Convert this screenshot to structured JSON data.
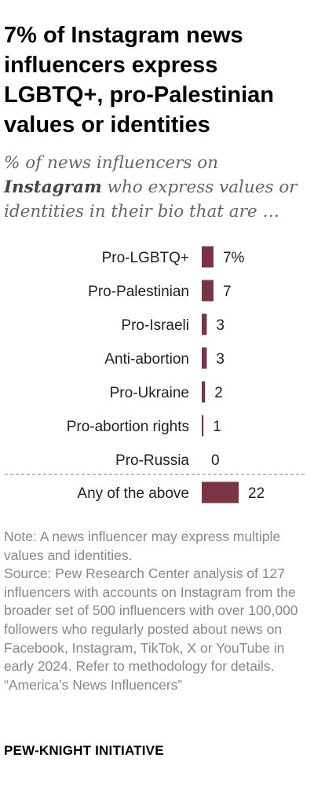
{
  "title": "7% of Instagram news influencers express LGBTQ+, pro-Palestinian values or identities",
  "subtitle": {
    "prefix": "% of news influencers on",
    "emphasis": "Instagram",
    "suffix": "who express values or identities in their bio that are …"
  },
  "chart_data": {
    "type": "bar",
    "orientation": "horizontal",
    "categories": [
      "Pro-LGBTQ+",
      "Pro-Palestinian",
      "Pro-Israeli",
      "Anti-abortion",
      "Pro-Ukraine",
      "Pro-abortion rights",
      "Pro-Russia",
      "Any of the above"
    ],
    "values": [
      7,
      7,
      3,
      3,
      2,
      1,
      0,
      22
    ],
    "value_labels": [
      "7%",
      "7",
      "3",
      "3",
      "2",
      "1",
      "0",
      "22"
    ],
    "xlim": [
      0,
      22
    ],
    "bar_color": "#7a3444",
    "separator_before": "Any of the above",
    "grid": false,
    "legend": "none"
  },
  "notes": {
    "note": "Note: A news influencer may express multiple values and identities.",
    "source": "Source: Pew Research Center analysis of 127 influencers with accounts on Instagram from the broader set of 500 influencers with over 100,000 followers who regularly posted about news on Facebook, Instagram, TikTok, X or YouTube in early 2024. Refer to methodology for details.",
    "report": "“America’s News Influencers”"
  },
  "branding": "PEW-KNIGHT INITIATIVE"
}
